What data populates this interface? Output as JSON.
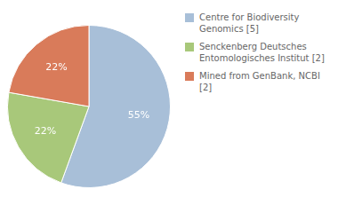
{
  "chart_data": {
    "type": "pie",
    "categories": [
      "Centre for Biodiversity\nGenomics [5]",
      "Senckenberg Deutsches\nEntomologisches Institut [2]",
      "Mined from GenBank, NCBI [2]"
    ],
    "values": [
      55,
      22,
      22
    ],
    "value_labels": [
      "55%",
      "22%",
      "22%"
    ],
    "colors": [
      "#a8bfd8",
      "#a8c87a",
      "#d97b5a"
    ],
    "data_labels": true,
    "legend": "right"
  }
}
